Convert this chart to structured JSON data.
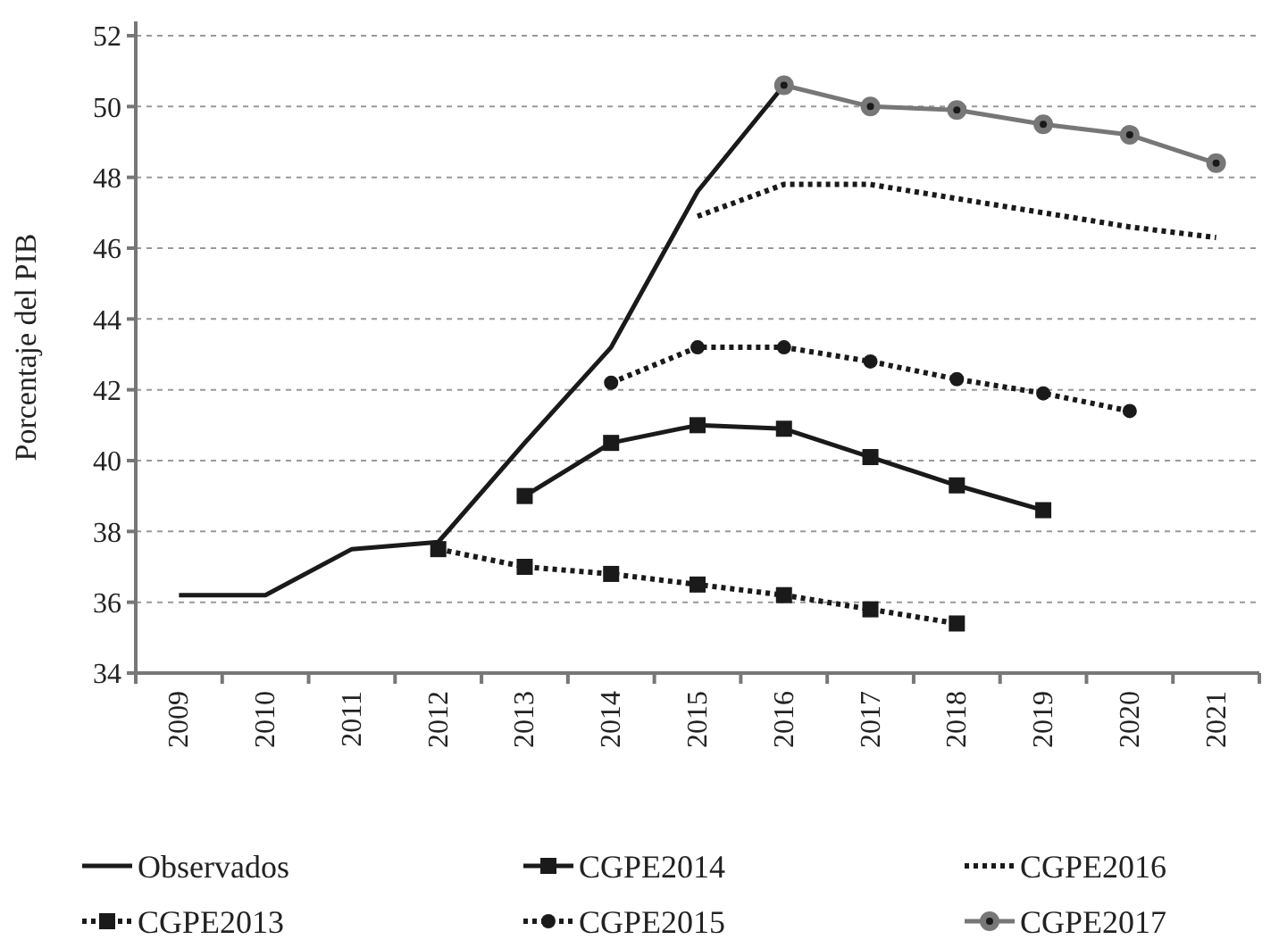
{
  "chart_data": {
    "type": "line",
    "ylabel": "Porcentaje del PIB",
    "categories": [
      "2009",
      "2010",
      "2011",
      "2012",
      "2013",
      "2014",
      "2015",
      "2016",
      "2017",
      "2018",
      "2019",
      "2020",
      "2021"
    ],
    "ylim": [
      34,
      52
    ],
    "yticks": [
      34,
      36,
      38,
      40,
      42,
      44,
      46,
      48,
      50,
      52
    ],
    "grid": "y",
    "legend": "bottom",
    "series": [
      {
        "name": "Observados",
        "color": "#1a1a1a",
        "line_style": "solid",
        "marker": "none",
        "values": [
          36.2,
          36.2,
          37.5,
          37.7,
          40.5,
          43.2,
          47.6,
          50.6,
          null,
          null,
          null,
          null,
          null
        ]
      },
      {
        "name": "CGPE2014",
        "color": "#1a1a1a",
        "line_style": "solid",
        "marker": "square",
        "values": [
          null,
          null,
          null,
          null,
          39.0,
          40.5,
          41.0,
          40.9,
          40.1,
          39.3,
          38.6,
          null,
          null
        ]
      },
      {
        "name": "CGPE2016",
        "color": "#1a1a1a",
        "line_style": "dotted",
        "marker": "none",
        "values": [
          null,
          null,
          null,
          null,
          null,
          null,
          46.9,
          47.8,
          47.8,
          47.4,
          47.0,
          46.6,
          46.3
        ]
      },
      {
        "name": "CGPE2013",
        "color": "#1a1a1a",
        "line_style": "dotted",
        "marker": "square",
        "values": [
          null,
          null,
          null,
          37.5,
          37.0,
          36.8,
          36.5,
          36.2,
          35.8,
          35.4,
          null,
          null,
          null
        ]
      },
      {
        "name": "CGPE2015",
        "color": "#1a1a1a",
        "line_style": "dotted",
        "marker": "circle",
        "values": [
          null,
          null,
          null,
          null,
          null,
          42.2,
          43.2,
          43.2,
          42.8,
          42.3,
          41.9,
          41.4,
          null
        ]
      },
      {
        "name": "CGPE2017",
        "color": "#777777",
        "line_style": "solid",
        "marker": "circle",
        "values": [
          null,
          null,
          null,
          null,
          null,
          null,
          null,
          50.6,
          50.0,
          49.9,
          49.5,
          49.2,
          48.4
        ]
      }
    ]
  }
}
